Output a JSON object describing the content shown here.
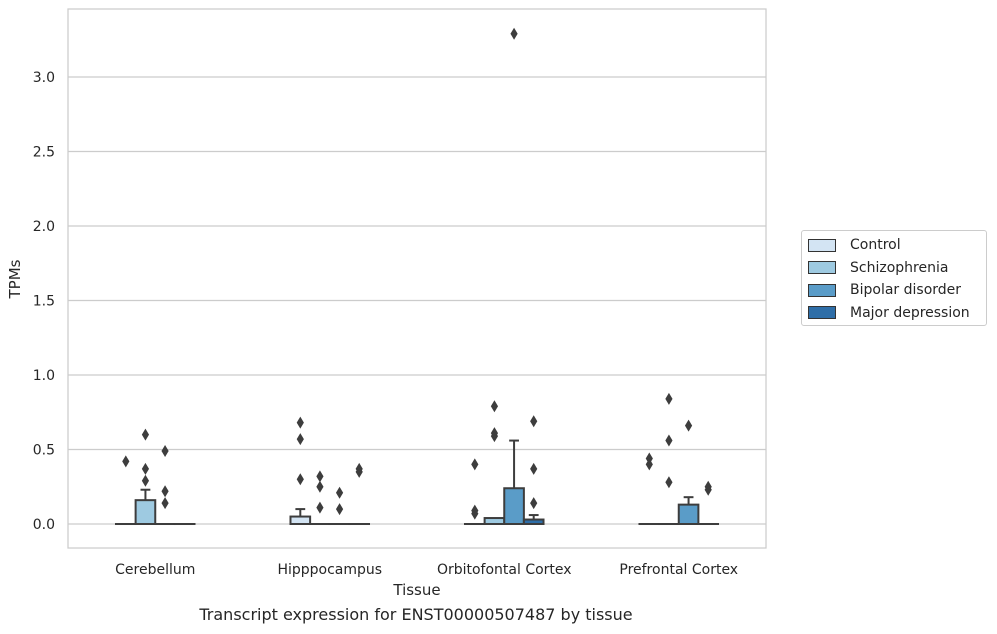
{
  "caption": "Transcript expression for ENST00000507487 by tissue",
  "chart_data": {
    "type": "box",
    "xlabel": "Tissue",
    "ylabel": "TPMs",
    "ylim": [
      -0.16,
      3.46
    ],
    "yticks": [
      "0.0",
      "0.5",
      "1.0",
      "1.5",
      "2.0",
      "2.5",
      "3.0"
    ],
    "grid": true,
    "legend_position": "right",
    "categories": [
      "Cerebellum",
      "Hipppocampus",
      "Orbitofontal Cortex",
      "Prefrontal Cortex"
    ],
    "series": [
      {
        "name": "Control",
        "color": "#d3e4f3",
        "boxes": [
          {
            "q1": 0,
            "median": 0,
            "q3": 0,
            "whisker_low": 0,
            "whisker_high": 0,
            "outliers": [
              0.42
            ]
          },
          {
            "q1": 0,
            "median": 0,
            "q3": 0.05,
            "whisker_low": 0,
            "whisker_high": 0.1,
            "outliers": [
              0.3,
              0.57,
              0.68
            ]
          },
          {
            "q1": 0,
            "median": 0,
            "q3": 0,
            "whisker_low": 0,
            "whisker_high": 0,
            "outliers": [
              0.07,
              0.09,
              0.4
            ]
          },
          {
            "q1": 0,
            "median": 0,
            "q3": 0,
            "whisker_low": 0,
            "whisker_high": 0,
            "outliers": [
              0.4,
              0.44
            ]
          }
        ]
      },
      {
        "name": "Schizophrenia",
        "color": "#9ecae1",
        "boxes": [
          {
            "q1": 0,
            "median": 0,
            "q3": 0.16,
            "whisker_low": 0,
            "whisker_high": 0.23,
            "outliers": [
              0.29,
              0.37,
              0.6
            ]
          },
          {
            "q1": 0,
            "median": 0,
            "q3": 0,
            "whisker_low": 0,
            "whisker_high": 0,
            "outliers": [
              0.11,
              0.25,
              0.32
            ]
          },
          {
            "q1": 0,
            "median": 0,
            "q3": 0.04,
            "whisker_low": 0,
            "whisker_high": 0.04,
            "outliers": [
              0.59,
              0.61,
              0.79
            ]
          },
          {
            "q1": 0,
            "median": 0,
            "q3": 0,
            "whisker_low": 0,
            "whisker_high": 0,
            "outliers": [
              0.28,
              0.56,
              0.84
            ]
          }
        ]
      },
      {
        "name": "Bipolar disorder",
        "color": "#5a9cc8",
        "boxes": [
          {
            "q1": 0,
            "median": 0,
            "q3": 0,
            "whisker_low": 0,
            "whisker_high": 0,
            "outliers": [
              0.14,
              0.22,
              0.49
            ]
          },
          {
            "q1": 0,
            "median": 0,
            "q3": 0,
            "whisker_low": 0,
            "whisker_high": 0,
            "outliers": [
              0.1,
              0.21
            ]
          },
          {
            "q1": 0,
            "median": 0,
            "q3": 0.24,
            "whisker_low": 0,
            "whisker_high": 0.56,
            "outliers": [
              3.29
            ]
          },
          {
            "q1": 0,
            "median": 0,
            "q3": 0.13,
            "whisker_low": 0,
            "whisker_high": 0.18,
            "outliers": [
              0.66
            ]
          }
        ]
      },
      {
        "name": "Major depression",
        "color": "#2e6ea8",
        "boxes": [
          {
            "q1": 0,
            "median": 0,
            "q3": 0,
            "whisker_low": 0,
            "whisker_high": 0,
            "outliers": []
          },
          {
            "q1": 0,
            "median": 0,
            "q3": 0,
            "whisker_low": 0,
            "whisker_high": 0,
            "outliers": [
              0.35,
              0.37
            ]
          },
          {
            "q1": 0,
            "median": 0,
            "q3": 0.03,
            "whisker_low": 0,
            "whisker_high": 0.06,
            "outliers": [
              0.14,
              0.37,
              0.69
            ]
          },
          {
            "q1": 0,
            "median": 0,
            "q3": 0,
            "whisker_low": 0,
            "whisker_high": 0,
            "outliers": [
              0.23,
              0.25
            ]
          }
        ]
      }
    ]
  }
}
